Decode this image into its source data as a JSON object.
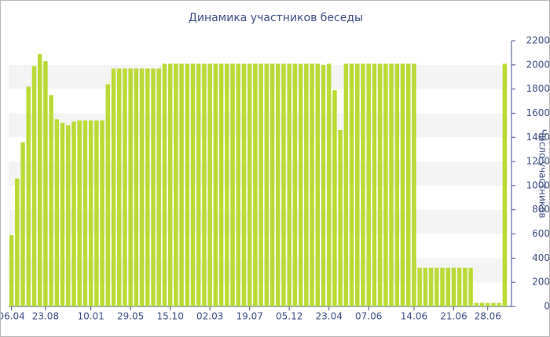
{
  "chart_data": {
    "type": "bar",
    "title": "Динамика участников беседы",
    "y_label": "Число участников",
    "categories": [
      "06.04",
      null,
      null,
      null,
      null,
      null,
      "23.08",
      null,
      null,
      null,
      null,
      null,
      null,
      null,
      "10.01",
      null,
      null,
      null,
      null,
      null,
      null,
      "29.05",
      null,
      null,
      null,
      null,
      null,
      null,
      "15.10",
      null,
      null,
      null,
      null,
      null,
      null,
      "02.03",
      null,
      null,
      null,
      null,
      null,
      null,
      "19.07",
      null,
      null,
      null,
      null,
      null,
      null,
      "05.12",
      null,
      null,
      null,
      null,
      null,
      null,
      "23.04",
      null,
      null,
      null,
      null,
      null,
      null,
      "07.06",
      null,
      null,
      null,
      null,
      null,
      null,
      null,
      "14.06",
      null,
      null,
      null,
      null,
      null,
      null,
      "21.06",
      null,
      null,
      null,
      null,
      null,
      "28.06",
      null,
      null,
      null
    ],
    "values": [
      590,
      1060,
      1360,
      1820,
      1990,
      2090,
      2030,
      1750,
      1550,
      1520,
      1500,
      1530,
      1540,
      1540,
      1540,
      1540,
      1540,
      1840,
      1970,
      1970,
      1970,
      1970,
      1970,
      1970,
      1970,
      1970,
      1970,
      2010,
      2010,
      2010,
      2010,
      2010,
      2010,
      2010,
      2010,
      2010,
      2010,
      2010,
      2010,
      2010,
      2010,
      2010,
      2010,
      2010,
      2010,
      2010,
      2010,
      2010,
      2010,
      2010,
      2010,
      2010,
      2010,
      2010,
      2010,
      2000,
      2010,
      1790,
      1460,
      2010,
      2010,
      2010,
      2010,
      2010,
      2010,
      2010,
      2010,
      2010,
      2010,
      2010,
      2010,
      2010,
      320,
      320,
      320,
      320,
      320,
      320,
      320,
      320,
      320,
      320,
      30,
      30,
      30,
      30,
      30,
      2010
    ],
    "color": "#bada35",
    "ylim": [
      0,
      2200
    ],
    "yticks": [
      0,
      200,
      400,
      600,
      800,
      1000,
      1200,
      1400,
      1600,
      1800,
      2000,
      2200
    ],
    "grid": "bands",
    "y_axis_side": "right"
  }
}
